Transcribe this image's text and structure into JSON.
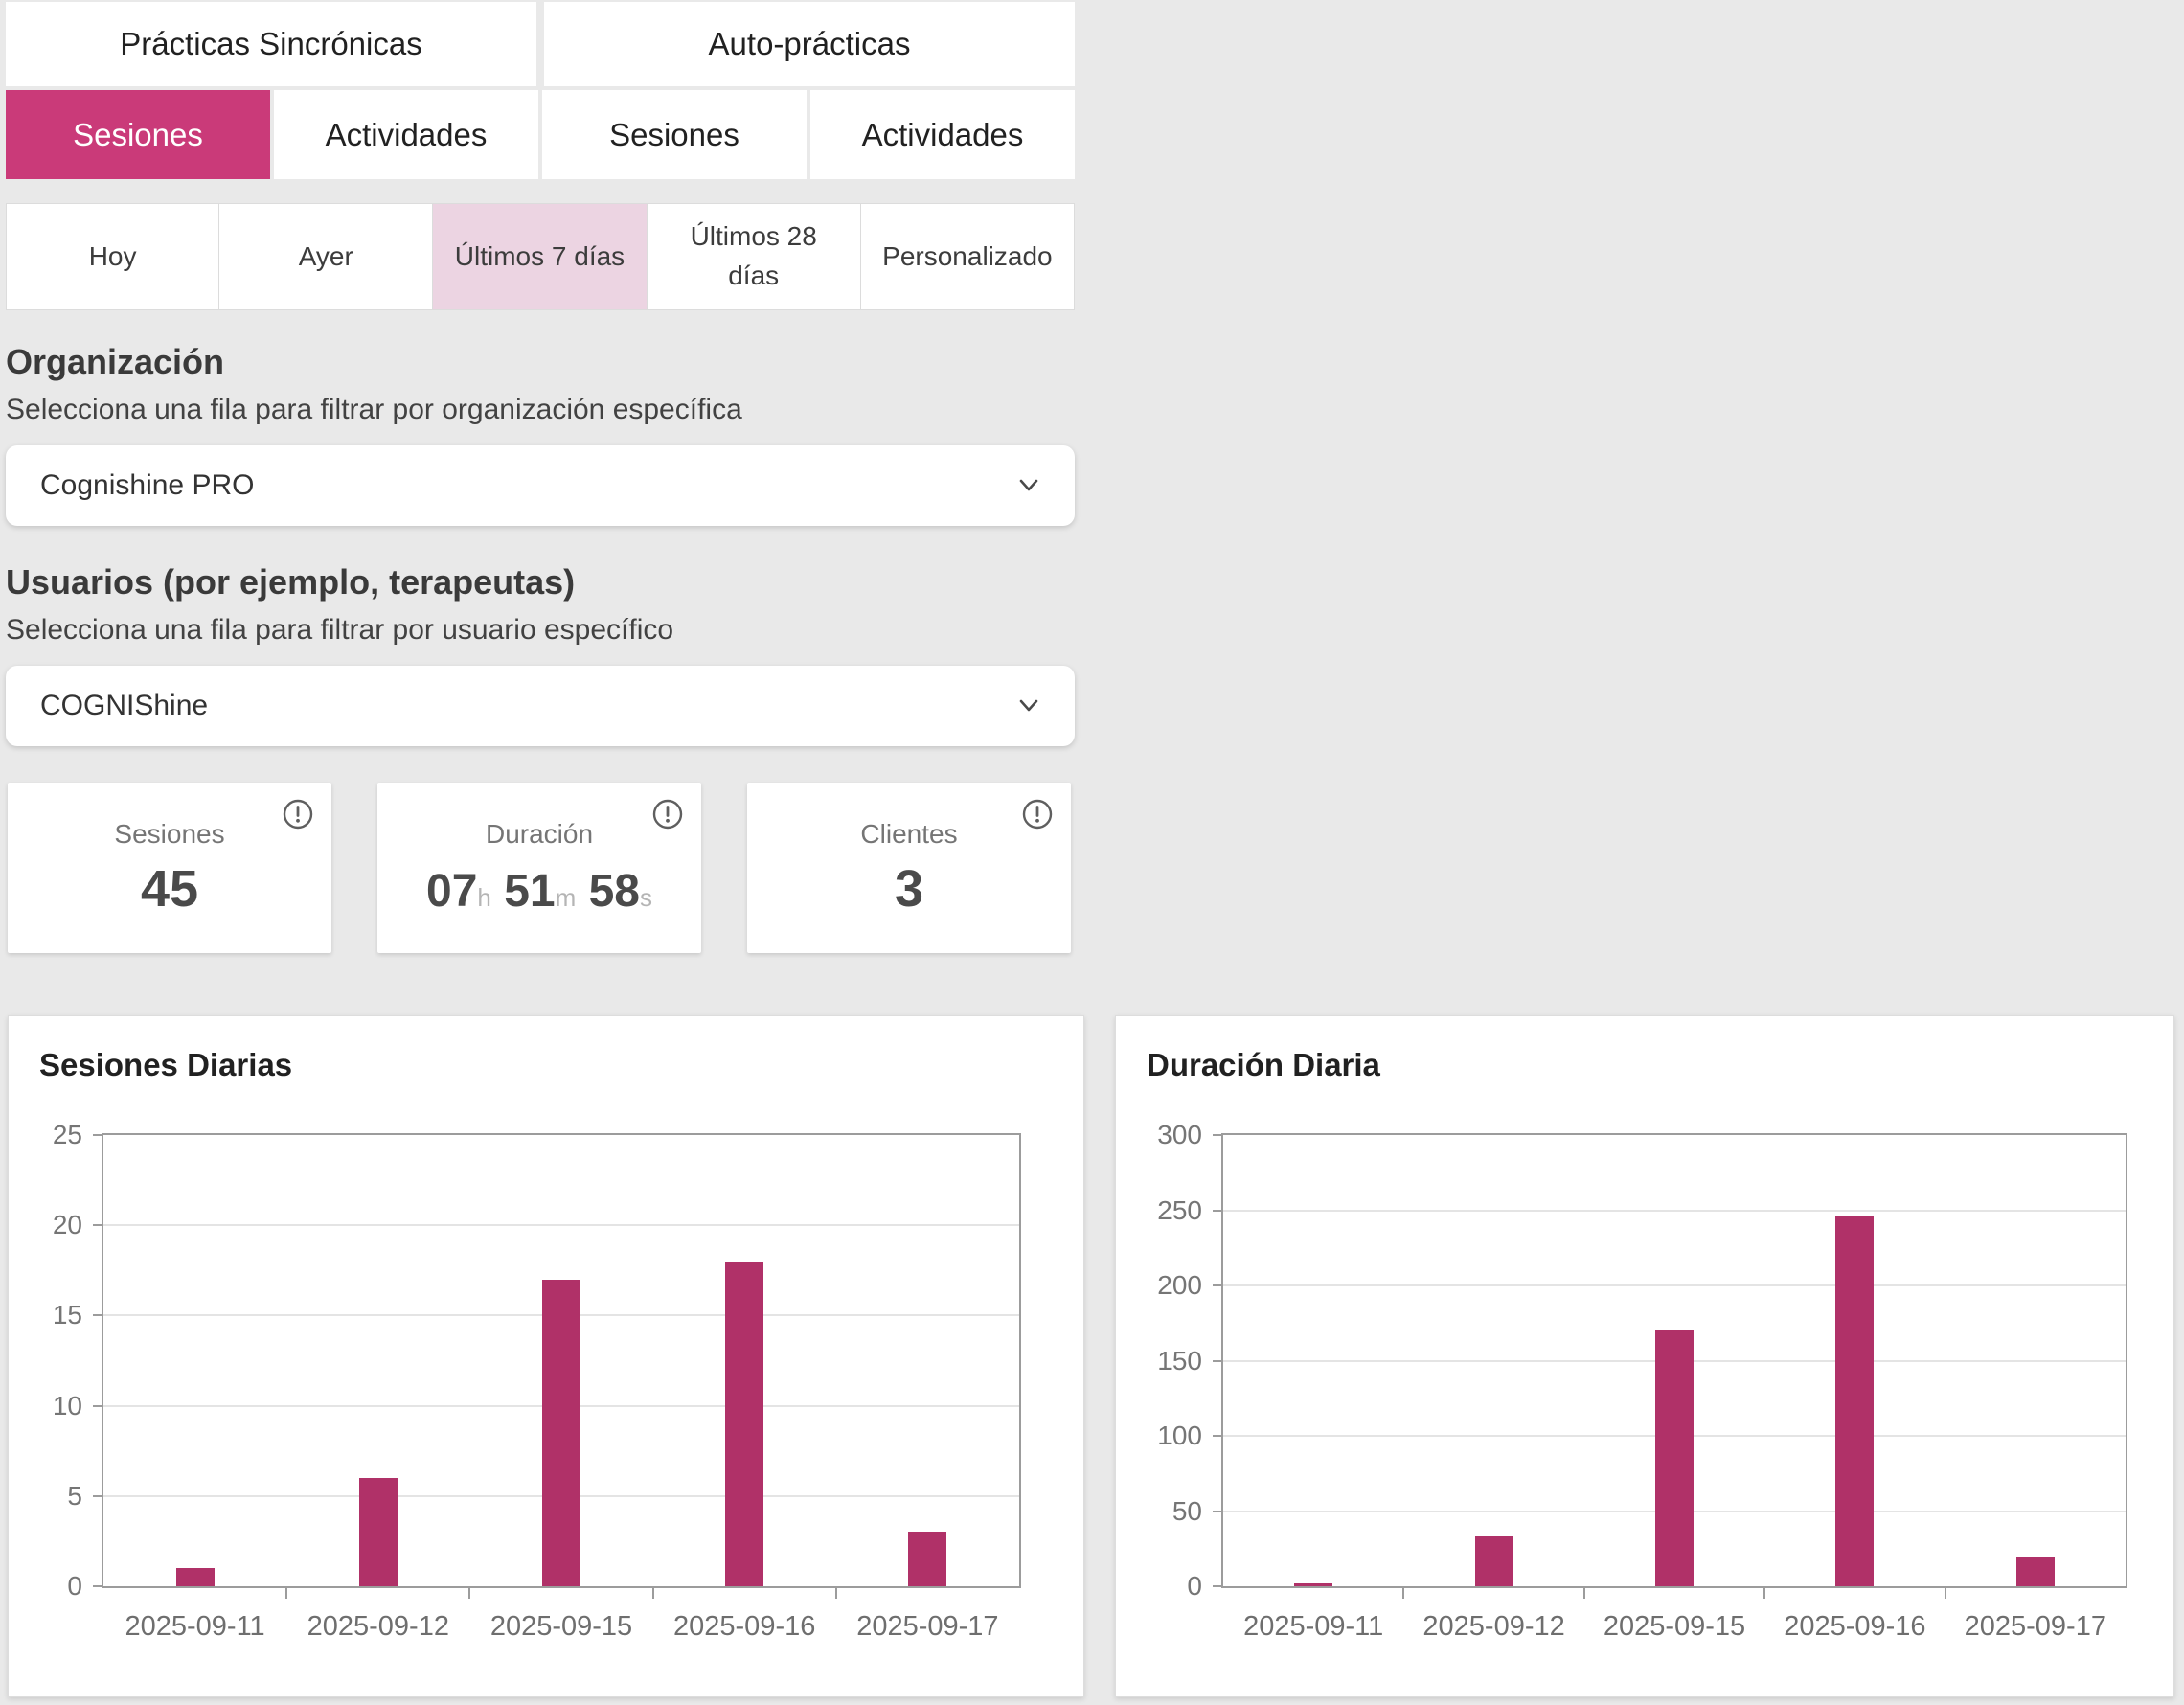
{
  "colors": {
    "page_bg": "#e9e9e9",
    "accent": "#ca3a79",
    "accent_light": "#ecd4e2",
    "bar": "#b03168"
  },
  "top_tabs": [
    {
      "label": "Prácticas Sincrónicas",
      "active": false
    },
    {
      "label": "Auto-prácticas",
      "active": false
    }
  ],
  "sub_tabs": [
    {
      "label": "Sesiones",
      "active": true
    },
    {
      "label": "Actividades",
      "active": false
    },
    {
      "label": "Sesiones",
      "active": false
    },
    {
      "label": "Actividades",
      "active": false
    }
  ],
  "date_filters": [
    {
      "label": "Hoy",
      "active": false
    },
    {
      "label": "Ayer",
      "active": false
    },
    {
      "label": "Últimos 7 días",
      "active": true
    },
    {
      "label": "Últimos 28 días",
      "active": false
    },
    {
      "label": "Personalizado",
      "active": false
    }
  ],
  "organization": {
    "title": "Organización",
    "subtitle": "Selecciona una fila para filtrar por organización específica",
    "selected": "Cognishine PRO"
  },
  "users": {
    "title": "Usuarios (por ejemplo, terapeutas)",
    "subtitle": "Selecciona una fila para filtrar por usuario específico",
    "selected": "COGNIShine"
  },
  "stats": [
    {
      "label": "Sesiones",
      "type": "number",
      "value": "45"
    },
    {
      "label": "Duración",
      "type": "duration",
      "parts": [
        {
          "v": "07",
          "u": "h"
        },
        {
          "v": "51",
          "u": "m"
        },
        {
          "v": "58",
          "u": "s"
        }
      ]
    },
    {
      "label": "Clientes",
      "type": "number",
      "value": "3"
    }
  ],
  "chart_data": [
    {
      "type": "bar",
      "title": "Sesiones Diarias",
      "categories": [
        "2025-09-11",
        "2025-09-12",
        "2025-09-15",
        "2025-09-16",
        "2025-09-17"
      ],
      "values": [
        1,
        6,
        17,
        18,
        3
      ],
      "ylim": [
        0,
        25
      ],
      "ytick_step": 5,
      "bar_color": "#b03168",
      "grid": true,
      "legend": "none",
      "xlabel": "",
      "ylabel": ""
    },
    {
      "type": "bar",
      "title": "Duración Diaria",
      "categories": [
        "2025-09-11",
        "2025-09-12",
        "2025-09-15",
        "2025-09-16",
        "2025-09-17"
      ],
      "values": [
        2,
        33,
        171,
        246,
        19
      ],
      "ylim": [
        0,
        300
      ],
      "ytick_step": 50,
      "bar_color": "#b03168",
      "grid": true,
      "legend": "none",
      "xlabel": "",
      "ylabel": ""
    }
  ]
}
